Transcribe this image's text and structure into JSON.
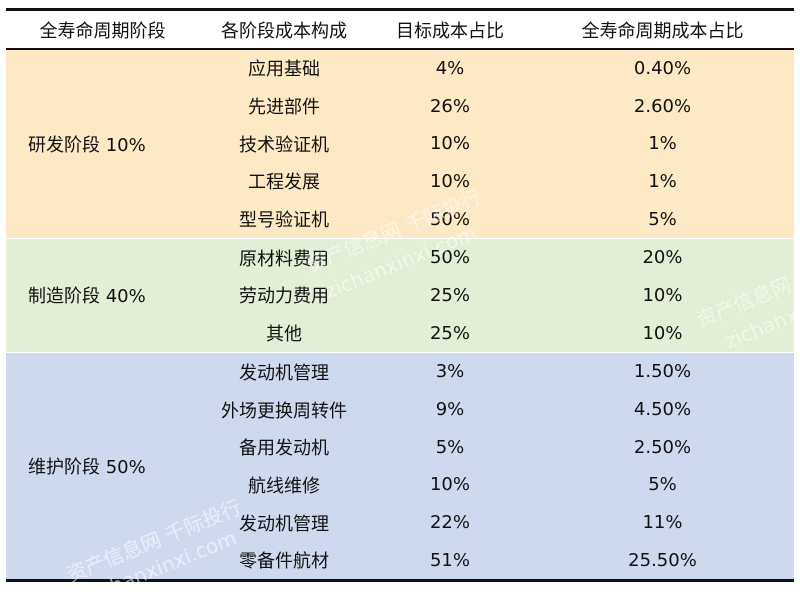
{
  "table": {
    "headers": [
      "全寿命周期阶段",
      "各阶段成本构成",
      "目标成本占比",
      "全寿命周期成本占比"
    ],
    "groups": [
      {
        "phase": "研发阶段 10%",
        "color": "#fde9c4",
        "rows": [
          {
            "item": "应用基础",
            "target": "4%",
            "life": "0.40%"
          },
          {
            "item": "先进部件",
            "target": "26%",
            "life": "2.60%"
          },
          {
            "item": "技术验证机",
            "target": "10%",
            "life": "1%"
          },
          {
            "item": "工程发展",
            "target": "10%",
            "life": "1%"
          },
          {
            "item": "型号验证机",
            "target": "50%",
            "life": "5%"
          }
        ]
      },
      {
        "phase": "制造阶段 40%",
        "color": "#e2efd6",
        "rows": [
          {
            "item": "原材料费用",
            "target": "50%",
            "life": "20%"
          },
          {
            "item": "劳动力费用",
            "target": "25%",
            "life": "10%"
          },
          {
            "item": "其他",
            "target": "25%",
            "life": "10%"
          }
        ]
      },
      {
        "phase": "维护阶段 50%",
        "color": "#cfd9ee",
        "rows": [
          {
            "item": "发动机管理",
            "target": "3%",
            "life": "1.50%"
          },
          {
            "item": "外场更换周转件",
            "target": "9%",
            "life": "4.50%"
          },
          {
            "item": "备用发动机",
            "target": "5%",
            "life": "2.50%"
          },
          {
            "item": "航线维修",
            "target": "10%",
            "life": "5%"
          },
          {
            "item": "发动机管理",
            "target": "22%",
            "life": "11%"
          },
          {
            "item": "零备件航材",
            "target": "51%",
            "life": "25.50%"
          }
        ]
      }
    ]
  },
  "watermarks": [
    "资产信息网 千际投行",
    "zichanxinxi.com",
    "资产信息网 千际投行",
    "zichanxinxi.com",
    "资产信息网 千际投行",
    "zichanxinxi.com"
  ]
}
